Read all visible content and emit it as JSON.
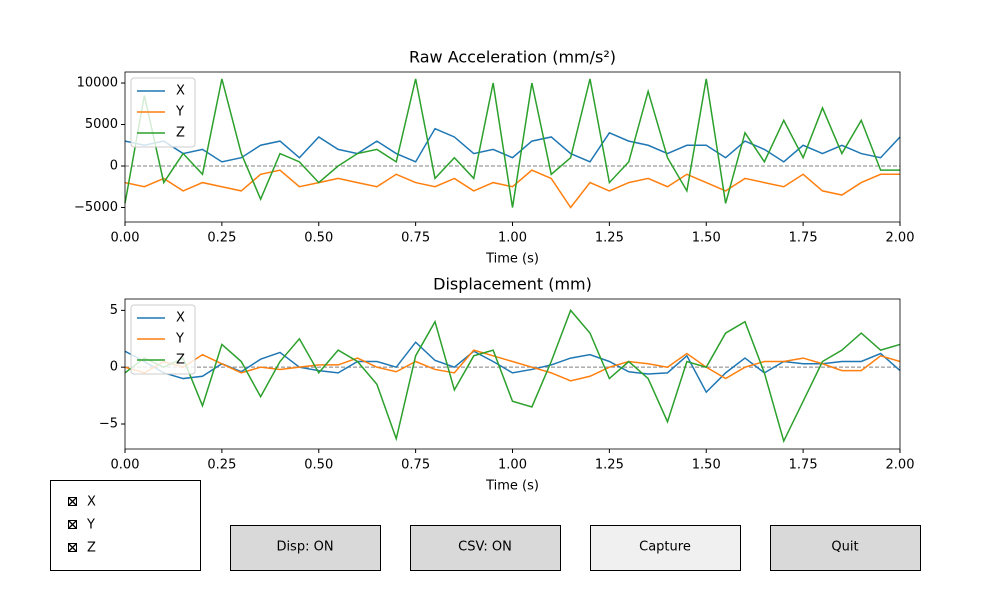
{
  "chart_data": [
    {
      "type": "line",
      "title": "Raw Acceleration (mm/s²)",
      "xlabel": "Time (s)",
      "x": [
        0,
        0.05,
        0.1,
        0.15,
        0.2,
        0.25,
        0.3,
        0.35,
        0.4,
        0.45,
        0.5,
        0.55,
        0.6,
        0.65,
        0.7,
        0.75,
        0.8,
        0.85,
        0.9,
        0.95,
        1,
        1.05,
        1.1,
        1.15,
        1.2,
        1.25,
        1.3,
        1.35,
        1.4,
        1.45,
        1.5,
        1.55,
        1.6,
        1.65,
        1.7,
        1.75,
        1.8,
        1.85,
        1.9,
        1.95,
        2
      ],
      "series": [
        {
          "name": "X",
          "color": "#1f77b4",
          "values": [
            3000,
            2500,
            3000,
            1500,
            2000,
            500,
            1000,
            2500,
            3000,
            1000,
            3500,
            2000,
            1500,
            3000,
            1500,
            500,
            4500,
            3500,
            1500,
            2000,
            1000,
            3000,
            3500,
            1500,
            500,
            4000,
            3000,
            2500,
            1500,
            2500,
            2500,
            1000,
            3000,
            2000,
            500,
            2500,
            1500,
            2500,
            1500,
            1000,
            3500
          ]
        },
        {
          "name": "Y",
          "color": "#ff7f0e",
          "values": [
            -2000,
            -2500,
            -1500,
            -3000,
            -2000,
            -2500,
            -3000,
            -1000,
            -500,
            -2500,
            -2000,
            -1500,
            -2000,
            -2500,
            -1000,
            -2000,
            -2500,
            -1500,
            -3000,
            -2000,
            -2500,
            -500,
            -1500,
            -5000,
            -2000,
            -3000,
            -2000,
            -1500,
            -2500,
            -1000,
            -2000,
            -3000,
            -1500,
            -2000,
            -2500,
            -1000,
            -3000,
            -3500,
            -2000,
            -1000,
            -1000
          ]
        },
        {
          "name": "Z",
          "color": "#2ca02c",
          "values": [
            -4500,
            8500,
            -2000,
            1500,
            -1000,
            10500,
            1500,
            -4000,
            1500,
            500,
            -2000,
            0,
            1500,
            2000,
            500,
            10500,
            -1500,
            1000,
            -1500,
            10000,
            -5000,
            10000,
            -1000,
            1000,
            10500,
            -2000,
            500,
            9000,
            1000,
            -3000,
            10500,
            -4500,
            4000,
            500,
            5500,
            1000,
            7000,
            1500,
            5500,
            -500,
            -500
          ]
        }
      ],
      "xlim": [
        0,
        2
      ],
      "ylim": [
        -6750,
        11330
      ],
      "xticks": [
        {
          "value": 0,
          "label": "0.00"
        },
        {
          "value": 0.25,
          "label": "0.25"
        },
        {
          "value": 0.5,
          "label": "0.50"
        },
        {
          "value": 0.75,
          "label": "0.75"
        },
        {
          "value": 1,
          "label": "1.00"
        },
        {
          "value": 1.25,
          "label": "1.25"
        },
        {
          "value": 1.5,
          "label": "1.50"
        },
        {
          "value": 1.75,
          "label": "1.75"
        },
        {
          "value": 2,
          "label": "2.00"
        }
      ],
      "yticks": [
        {
          "value": -5000,
          "label": "−5000"
        },
        0,
        5000,
        10000
      ],
      "zero_line": true,
      "legend": "upper-left"
    },
    {
      "type": "line",
      "title": "Displacement (mm)",
      "xlabel": "Time (s)",
      "x": [
        0,
        0.05,
        0.1,
        0.15,
        0.2,
        0.25,
        0.3,
        0.35,
        0.4,
        0.45,
        0.5,
        0.55,
        0.6,
        0.65,
        0.7,
        0.75,
        0.8,
        0.85,
        0.9,
        0.95,
        1,
        1.05,
        1.1,
        1.15,
        1.2,
        1.25,
        1.3,
        1.35,
        1.4,
        1.45,
        1.5,
        1.55,
        1.6,
        1.65,
        1.7,
        1.75,
        1.8,
        1.85,
        1.9,
        1.95,
        2
      ],
      "series": [
        {
          "name": "X",
          "color": "#1f77b4",
          "values": [
            1.4,
            0.5,
            -0.5,
            -1.0,
            -0.8,
            0.3,
            -0.4,
            0.7,
            1.3,
            0.0,
            -0.3,
            -0.5,
            0.5,
            0.5,
            0.0,
            2.2,
            0.6,
            0.0,
            1.4,
            0.5,
            -0.5,
            -0.2,
            0.2,
            0.8,
            1.1,
            0.5,
            -0.4,
            -0.6,
            -0.5,
            1.0,
            -2.2,
            -0.5,
            0.8,
            -0.5,
            0.5,
            0.3,
            0.3,
            0.5,
            0.5,
            1.2,
            -0.3
          ]
        },
        {
          "name": "Y",
          "color": "#ff7f0e",
          "values": [
            0.0,
            -0.5,
            0.5,
            0.0,
            1.1,
            0.3,
            -0.5,
            0.0,
            -0.2,
            0.0,
            0.2,
            0.2,
            0.8,
            0.0,
            -0.4,
            0.5,
            -0.2,
            -0.5,
            1.5,
            1.0,
            0.5,
            0.0,
            -0.5,
            -1.2,
            -0.8,
            0.0,
            0.5,
            0.3,
            0.0,
            1.2,
            0.0,
            -1.0,
            0.0,
            0.5,
            0.5,
            0.8,
            0.3,
            -0.3,
            -0.3,
            1.0,
            0.5
          ]
        },
        {
          "name": "Z",
          "color": "#2ca02c",
          "values": [
            -0.5,
            0.8,
            0.0,
            0.8,
            -3.4,
            2.0,
            0.5,
            -2.6,
            0.5,
            2.5,
            -0.5,
            1.5,
            0.5,
            -1.5,
            -6.3,
            1.0,
            4.0,
            -2.0,
            1.0,
            1.5,
            -3.0,
            -3.5,
            0.5,
            5.0,
            3.0,
            -1.0,
            0.5,
            -1.0,
            -4.8,
            0.5,
            0.0,
            3.0,
            4.0,
            -0.5,
            -6.5,
            -3.0,
            0.5,
            1.5,
            3.0,
            1.5,
            2.0
          ]
        }
      ],
      "xlim": [
        0,
        2
      ],
      "ylim": [
        -7.2,
        6.0
      ],
      "xticks": [
        {
          "value": 0,
          "label": "0.00"
        },
        {
          "value": 0.25,
          "label": "0.25"
        },
        {
          "value": 0.5,
          "label": "0.50"
        },
        {
          "value": 0.75,
          "label": "0.75"
        },
        {
          "value": 1,
          "label": "1.00"
        },
        {
          "value": 1.25,
          "label": "1.25"
        },
        {
          "value": 1.5,
          "label": "1.50"
        },
        {
          "value": 1.75,
          "label": "1.75"
        },
        {
          "value": 2,
          "label": "2.00"
        }
      ],
      "yticks": [
        {
          "value": -5,
          "label": "−5"
        },
        0,
        5
      ],
      "zero_line": true,
      "legend": "upper-left"
    }
  ],
  "checkboxes": [
    {
      "label": "X",
      "checked": true
    },
    {
      "label": "Y",
      "checked": true
    },
    {
      "label": "Z",
      "checked": true
    }
  ],
  "buttons": [
    {
      "label": "Disp: ON",
      "color": "#d9d9d9"
    },
    {
      "label": "CSV: ON",
      "color": "#d9d9d9"
    },
    {
      "label": "Capture",
      "color": "#f0f0f0"
    },
    {
      "label": "Quit",
      "color": "#d9d9d9"
    }
  ]
}
